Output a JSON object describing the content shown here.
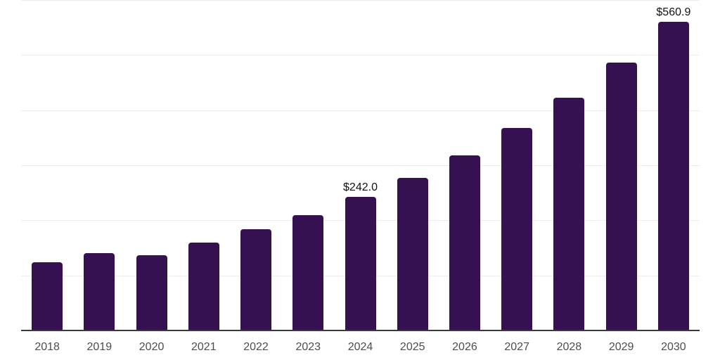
{
  "chart_data": {
    "type": "bar",
    "title": "",
    "xlabel": "",
    "ylabel": "",
    "categories": [
      "2018",
      "2019",
      "2020",
      "2021",
      "2022",
      "2023",
      "2024",
      "2025",
      "2026",
      "2027",
      "2028",
      "2029",
      "2030"
    ],
    "values": [
      124,
      140,
      137,
      160,
      184,
      209,
      242.0,
      277,
      318,
      368,
      423,
      486,
      560.9
    ],
    "data_labels": [
      {
        "category": "2024",
        "text": "$242.0"
      },
      {
        "category": "2030",
        "text": "$560.9"
      }
    ],
    "ylim": [
      0,
      600
    ],
    "gridline_step": 100,
    "grid": "horizontal",
    "legend": "none",
    "y_axis_tick_labels": "none",
    "colors": {
      "bar": "#351151",
      "gridline": "#ededed",
      "axis_line": "#3a3a3a",
      "tick_label": "#4d4d4d",
      "data_label": "#111111",
      "background": "#ffffff"
    }
  }
}
